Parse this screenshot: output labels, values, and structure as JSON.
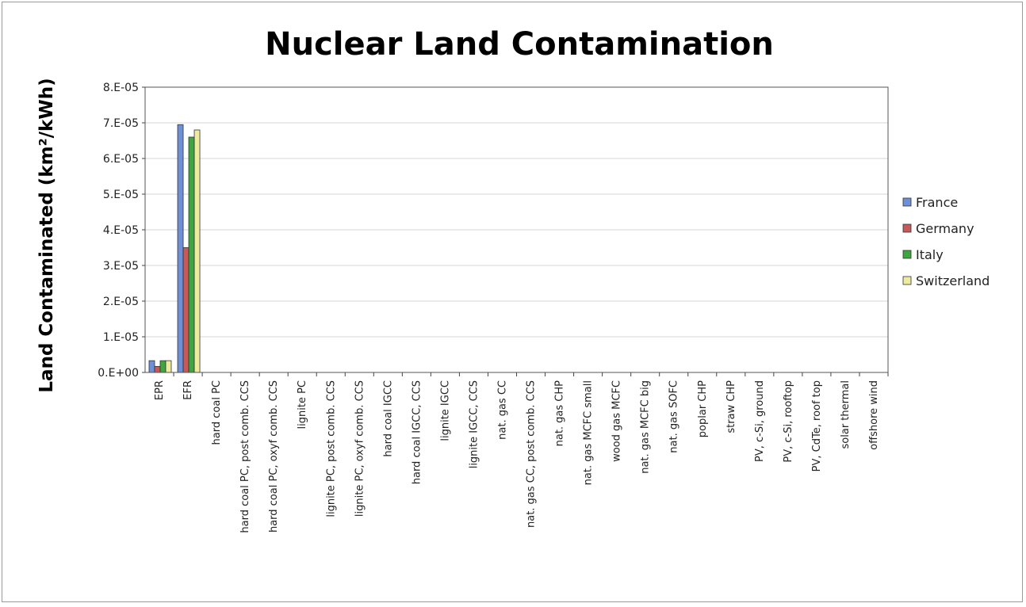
{
  "chart_data": {
    "type": "bar",
    "title": "Nuclear Land Contamination",
    "xlabel": "",
    "ylabel": "Land Contaminated (km²/kWh)",
    "ylim": [
      0,
      8e-05
    ],
    "yticks": [
      "0.E+00",
      "1.E-05",
      "2.E-05",
      "3.E-05",
      "4.E-05",
      "5.E-05",
      "6.E-05",
      "7.E-05",
      "8.E-05"
    ],
    "grid": true,
    "legend_position": "right",
    "categories": [
      "EPR",
      "EFR",
      "hard coal PC",
      "hard coal PC, post comb. CCS",
      "hard coal PC, oxyf comb. CCS",
      "lignite PC",
      "lignite PC, post comb. CCS",
      "lignite PC, oxyf comb. CCS",
      "hard coal IGCC",
      "hard coal IGCC, CCS",
      "lignite IGCC",
      "lignite IGCC, CCS",
      "nat. gas CC",
      "nat. gas CC, post comb. CCS",
      "nat. gas CHP",
      "nat. gas MCFC small",
      "wood gas MCFC",
      "nat. gas MCFC big",
      "nat. gas SOFC",
      "poplar CHP",
      "straw CHP",
      "PV, c-Si, ground",
      "PV, c-Si, rooftop",
      "PV, CdTe, roof top",
      "solar thermal",
      "offshore wind"
    ],
    "series": [
      {
        "name": "France",
        "color": "#6f8fd6",
        "values": [
          3.3e-06,
          6.95e-05,
          0,
          0,
          0,
          0,
          0,
          0,
          0,
          0,
          0,
          0,
          0,
          0,
          0,
          0,
          0,
          0,
          0,
          0,
          0,
          0,
          0,
          0,
          0,
          0
        ]
      },
      {
        "name": "Germany",
        "color": "#c65a5a",
        "values": [
          1.7e-06,
          3.5e-05,
          0,
          0,
          0,
          0,
          0,
          0,
          0,
          0,
          0,
          0,
          0,
          0,
          0,
          0,
          0,
          0,
          0,
          0,
          0,
          0,
          0,
          0,
          0,
          0
        ]
      },
      {
        "name": "Italy",
        "color": "#3fa63f",
        "values": [
          3.3e-06,
          6.6e-05,
          0,
          0,
          0,
          0,
          0,
          0,
          0,
          0,
          0,
          0,
          0,
          0,
          0,
          0,
          0,
          0,
          0,
          0,
          0,
          0,
          0,
          0,
          0,
          0
        ]
      },
      {
        "name": "Switzerland",
        "color": "#eeeaa0",
        "values": [
          3.3e-06,
          6.8e-05,
          0,
          0,
          0,
          0,
          0,
          0,
          0,
          0,
          0,
          0,
          0,
          0,
          0,
          0,
          0,
          0,
          0,
          0,
          0,
          0,
          0,
          0,
          0,
          0
        ]
      }
    ]
  }
}
